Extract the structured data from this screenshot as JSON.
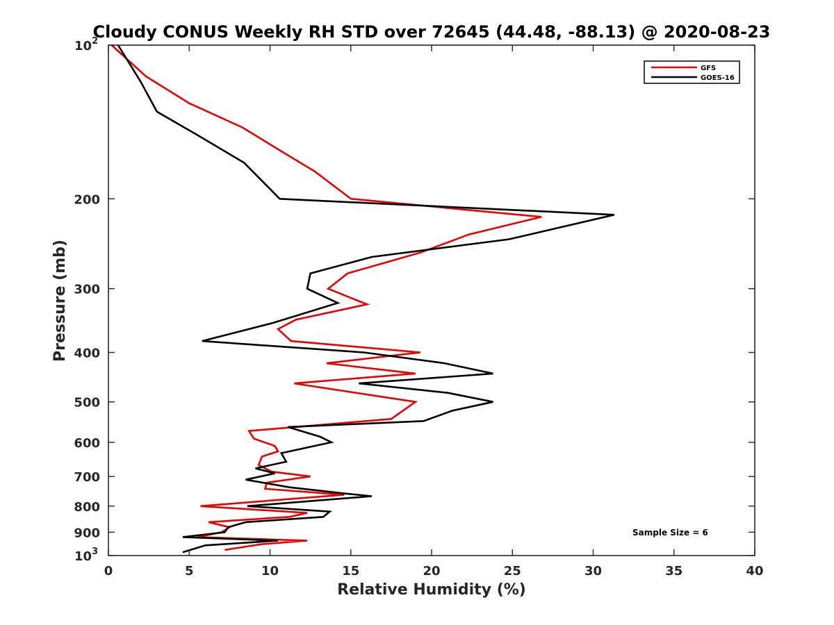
{
  "chart_data": {
    "type": "line",
    "title": "Cloudy CONUS Weekly RH STD over 72645 (44.48, -88.13) @ 2020-08-23",
    "xlabel": "Relative Humidity (%)",
    "ylabel": "Pressure (mb)",
    "xlim": [
      0,
      40
    ],
    "ylim": [
      100,
      1000
    ],
    "y_scale": "log",
    "y_reversed": true,
    "x_ticks": [
      0,
      5,
      10,
      15,
      20,
      25,
      30,
      35,
      40
    ],
    "x_tick_labels": [
      "0",
      "5",
      "10",
      "15",
      "20",
      "25",
      "30",
      "35",
      "40"
    ],
    "y_ticks": [
      100,
      200,
      300,
      400,
      500,
      600,
      700,
      800,
      900,
      1000
    ],
    "y_tick_labels": [
      {
        "base": "10",
        "exp": "2"
      },
      {
        "base": "200",
        "exp": ""
      },
      {
        "base": "300",
        "exp": ""
      },
      {
        "base": "400",
        "exp": ""
      },
      {
        "base": "500",
        "exp": ""
      },
      {
        "base": "600",
        "exp": ""
      },
      {
        "base": "700",
        "exp": ""
      },
      {
        "base": "800",
        "exp": ""
      },
      {
        "base": "900",
        "exp": ""
      },
      {
        "base": "10",
        "exp": "3"
      }
    ],
    "grid": false,
    "legend_position": "top-right",
    "annotation": "Sample Size = 6",
    "series": [
      {
        "name": "GFS",
        "color": "#e60000",
        "points": [
          [
            0.2,
            100
          ],
          [
            2.3,
            115
          ],
          [
            5.0,
            130
          ],
          [
            8.3,
            145
          ],
          [
            10.5,
            160
          ],
          [
            12.8,
            177
          ],
          [
            15.0,
            200
          ],
          [
            26.8,
            217
          ],
          [
            22.3,
            235
          ],
          [
            19.3,
            255
          ],
          [
            14.8,
            280
          ],
          [
            13.6,
            300
          ],
          [
            16.0,
            322
          ],
          [
            11.6,
            345
          ],
          [
            10.5,
            360
          ],
          [
            11.3,
            380
          ],
          [
            19.3,
            400
          ],
          [
            13.5,
            420
          ],
          [
            19.0,
            440
          ],
          [
            11.5,
            460
          ],
          [
            19.0,
            500
          ],
          [
            17.5,
            540
          ],
          [
            8.7,
            570
          ],
          [
            9.0,
            590
          ],
          [
            10.3,
            610
          ],
          [
            10.5,
            625
          ],
          [
            9.5,
            640
          ],
          [
            9.3,
            665
          ],
          [
            10.1,
            685
          ],
          [
            12.5,
            700
          ],
          [
            9.8,
            720
          ],
          [
            9.7,
            740
          ],
          [
            14.6,
            760
          ],
          [
            5.7,
            800
          ],
          [
            12.3,
            825
          ],
          [
            11.2,
            840
          ],
          [
            6.2,
            860
          ],
          [
            7.5,
            880
          ],
          [
            7.0,
            900
          ],
          [
            5.5,
            920
          ],
          [
            12.3,
            935
          ],
          [
            9.5,
            950
          ],
          [
            7.2,
            975
          ]
        ]
      },
      {
        "name": "GOES-16",
        "color": "#000000",
        "points": [
          [
            0.6,
            100
          ],
          [
            2.0,
            118
          ],
          [
            3.0,
            135
          ],
          [
            5.5,
            150
          ],
          [
            8.4,
            170
          ],
          [
            10.6,
            200
          ],
          [
            31.3,
            215
          ],
          [
            24.8,
            240
          ],
          [
            16.3,
            260
          ],
          [
            12.5,
            280
          ],
          [
            12.3,
            300
          ],
          [
            14.2,
            320
          ],
          [
            10.2,
            350
          ],
          [
            5.8,
            380
          ],
          [
            15.8,
            400
          ],
          [
            20.8,
            420
          ],
          [
            23.8,
            440
          ],
          [
            15.5,
            460
          ],
          [
            21.0,
            480
          ],
          [
            23.8,
            500
          ],
          [
            21.3,
            520
          ],
          [
            19.5,
            545
          ],
          [
            11.1,
            560
          ],
          [
            13.1,
            585
          ],
          [
            13.8,
            600
          ],
          [
            10.7,
            630
          ],
          [
            11.0,
            655
          ],
          [
            9.1,
            675
          ],
          [
            10.3,
            690
          ],
          [
            8.5,
            710
          ],
          [
            11.2,
            735
          ],
          [
            14.5,
            755
          ],
          [
            16.3,
            765
          ],
          [
            8.6,
            800
          ],
          [
            13.7,
            820
          ],
          [
            13.3,
            840
          ],
          [
            8.5,
            860
          ],
          [
            7.4,
            880
          ],
          [
            7.2,
            900
          ],
          [
            4.6,
            920
          ],
          [
            10.5,
            935
          ],
          [
            6.0,
            955
          ],
          [
            4.6,
            985
          ]
        ]
      }
    ]
  }
}
